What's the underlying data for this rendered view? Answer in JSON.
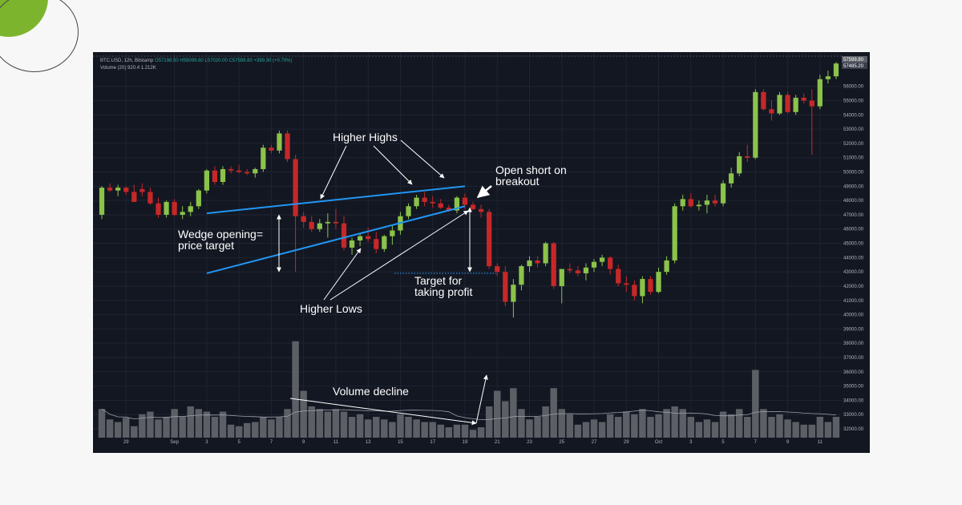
{
  "header": {
    "symbol": "BTC.USD, 12h, Bitstamp",
    "ohlc": "O57198.50  H59099.60  L57020.00  C57599.80  +399.30 (+0.70%)",
    "volume": "Volume (20)  920.4  1.212K"
  },
  "annotations": {
    "higher_highs": "Higher Highs",
    "higher_lows": "Higher Lows",
    "wedge_1": "Wedge opening=",
    "wedge_2": "price target",
    "short_1": "Open short on",
    "short_2": "breakout",
    "target_1": "Target for",
    "target_2": "taking profit",
    "volume_decline": "Volume decline"
  },
  "colors": {
    "up": "#8bc34a",
    "down": "#c62828",
    "trendline": "#2196f3",
    "volume_bar": "#5d5f66",
    "grid": "#1f2433"
  },
  "last_price_labels": [
    "57599.80",
    "57485.20"
  ],
  "chart_data": {
    "type": "candlestick",
    "ylim": [
      32000,
      57500
    ],
    "y_ticks": [
      32000,
      33000,
      34000,
      35000,
      36000,
      37000,
      38000,
      39000,
      40000,
      41000,
      42000,
      43000,
      44000,
      45000,
      46000,
      47000,
      48000,
      49000,
      50000,
      51000,
      52000,
      53000,
      54000,
      55000,
      56000
    ],
    "x_ticks": [
      {
        "label": "29",
        "i": 3
      },
      {
        "label": "Sep",
        "i": 9
      },
      {
        "label": "3",
        "i": 13
      },
      {
        "label": "5",
        "i": 17
      },
      {
        "label": "7",
        "i": 21
      },
      {
        "label": "9",
        "i": 25
      },
      {
        "label": "11",
        "i": 29
      },
      {
        "label": "13",
        "i": 33
      },
      {
        "label": "15",
        "i": 37
      },
      {
        "label": "17",
        "i": 41
      },
      {
        "label": "19",
        "i": 45
      },
      {
        "label": "21",
        "i": 49
      },
      {
        "label": "23",
        "i": 53
      },
      {
        "label": "25",
        "i": 57
      },
      {
        "label": "27",
        "i": 61
      },
      {
        "label": "29",
        "i": 65
      },
      {
        "label": "Oct",
        "i": 69
      },
      {
        "label": "3",
        "i": 73
      },
      {
        "label": "5",
        "i": 77
      },
      {
        "label": "7",
        "i": 81
      },
      {
        "label": "9",
        "i": 85
      },
      {
        "label": "11",
        "i": 89
      }
    ],
    "candles": [
      [
        47000,
        49000,
        46700,
        48900,
        55
      ],
      [
        48900,
        49200,
        48600,
        48700,
        35
      ],
      [
        48700,
        49100,
        48300,
        48900,
        30
      ],
      [
        48900,
        49000,
        48400,
        48600,
        38
      ],
      [
        48600,
        49100,
        47900,
        47900,
        22
      ],
      [
        48800,
        49200,
        48300,
        48600,
        45
      ],
      [
        48600,
        48900,
        47700,
        47800,
        50
      ],
      [
        47800,
        48200,
        46800,
        47000,
        35
      ],
      [
        47000,
        48000,
        46800,
        47900,
        40
      ],
      [
        47900,
        48100,
        46900,
        47000,
        55
      ],
      [
        47000,
        47600,
        46700,
        47200,
        40
      ],
      [
        47200,
        47900,
        46900,
        47600,
        60
      ],
      [
        47600,
        48800,
        47400,
        48700,
        55
      ],
      [
        48700,
        50200,
        48500,
        50100,
        50
      ],
      [
        50100,
        50400,
        49100,
        49300,
        40
      ],
      [
        49300,
        50400,
        49100,
        50200,
        50
      ],
      [
        50200,
        50400,
        49900,
        50100,
        25
      ],
      [
        50100,
        50500,
        49900,
        50000,
        22
      ],
      [
        50000,
        50200,
        49800,
        49900,
        28
      ],
      [
        49900,
        50300,
        49600,
        50200,
        30
      ],
      [
        50200,
        51900,
        50000,
        51700,
        40
      ],
      [
        51700,
        51900,
        51300,
        51500,
        35
      ],
      [
        51500,
        52900,
        51300,
        52700,
        40
      ],
      [
        52700,
        52900,
        50700,
        50900,
        55
      ],
      [
        50900,
        51200,
        43000,
        46900,
        185
      ],
      [
        46900,
        47200,
        46100,
        46500,
        90
      ],
      [
        46500,
        46900,
        45800,
        46000,
        60
      ],
      [
        46000,
        46700,
        45800,
        46400,
        55
      ],
      [
        46400,
        47100,
        45400,
        46500,
        50
      ],
      [
        46500,
        47400,
        46000,
        46400,
        55
      ],
      [
        46400,
        46900,
        44500,
        44700,
        50
      ],
      [
        44700,
        45400,
        44200,
        45200,
        40
      ],
      [
        45200,
        45700,
        44800,
        45500,
        45
      ],
      [
        45500,
        46100,
        45100,
        45300,
        35
      ],
      [
        45300,
        45800,
        44300,
        44600,
        40
      ],
      [
        44600,
        45600,
        44400,
        45500,
        35
      ],
      [
        45500,
        46300,
        44900,
        45900,
        30
      ],
      [
        45900,
        47200,
        45600,
        46900,
        45
      ],
      [
        46900,
        47800,
        46700,
        47600,
        40
      ],
      [
        47600,
        48400,
        47400,
        48200,
        35
      ],
      [
        48200,
        48600,
        47600,
        47900,
        30
      ],
      [
        47900,
        48300,
        47500,
        47800,
        30
      ],
      [
        47800,
        48100,
        47400,
        47500,
        25
      ],
      [
        47500,
        47700,
        47200,
        47300,
        20
      ],
      [
        47300,
        48300,
        47100,
        48200,
        25
      ],
      [
        48200,
        48500,
        47400,
        47700,
        25
      ],
      [
        47700,
        47900,
        47300,
        47400,
        15
      ],
      [
        47400,
        47700,
        46800,
        47200,
        20
      ],
      [
        47200,
        47400,
        43200,
        43400,
        60
      ],
      [
        43400,
        43600,
        42700,
        43000,
        90
      ],
      [
        43000,
        43400,
        40600,
        40900,
        70
      ],
      [
        40900,
        42500,
        39800,
        42100,
        95
      ],
      [
        42100,
        43500,
        41700,
        43400,
        55
      ],
      [
        43400,
        44100,
        43000,
        43800,
        35
      ],
      [
        43800,
        44100,
        43300,
        43600,
        40
      ],
      [
        43600,
        45100,
        43400,
        45000,
        60
      ],
      [
        45000,
        45100,
        41800,
        42000,
        95
      ],
      [
        42000,
        43200,
        40800,
        43200,
        55
      ],
      [
        43200,
        43600,
        42900,
        43100,
        45
      ],
      [
        43100,
        43400,
        42700,
        42900,
        25
      ],
      [
        42900,
        43600,
        42400,
        43300,
        30
      ],
      [
        43300,
        43900,
        43000,
        43700,
        35
      ],
      [
        43700,
        44200,
        43400,
        44000,
        30
      ],
      [
        44000,
        44100,
        42800,
        43200,
        45
      ],
      [
        43200,
        43500,
        42000,
        42200,
        40
      ],
      [
        42200,
        42700,
        41600,
        42100,
        50
      ],
      [
        42100,
        42400,
        41000,
        41300,
        45
      ],
      [
        41300,
        42700,
        40800,
        42500,
        55
      ],
      [
        42500,
        42700,
        41400,
        41600,
        40
      ],
      [
        41600,
        43300,
        41500,
        43000,
        45
      ],
      [
        43000,
        44100,
        42800,
        43800,
        55
      ],
      [
        43800,
        47800,
        43600,
        47600,
        60
      ],
      [
        47600,
        48400,
        47300,
        48100,
        55
      ],
      [
        48100,
        48500,
        47500,
        47600,
        40
      ],
      [
        47600,
        48000,
        47300,
        47700,
        30
      ],
      [
        47700,
        48400,
        47100,
        48000,
        35
      ],
      [
        48000,
        48400,
        47600,
        47800,
        30
      ],
      [
        47800,
        49400,
        47600,
        49200,
        50
      ],
      [
        49200,
        50300,
        48900,
        49900,
        45
      ],
      [
        49900,
        51400,
        49700,
        51100,
        55
      ],
      [
        51100,
        51900,
        50700,
        51000,
        40
      ],
      [
        51000,
        55800,
        50900,
        55600,
        130
      ],
      [
        55600,
        55800,
        54300,
        54400,
        55
      ],
      [
        54400,
        55000,
        53600,
        54100,
        40
      ],
      [
        54100,
        55600,
        54000,
        55400,
        45
      ],
      [
        55400,
        55600,
        54100,
        54200,
        35
      ],
      [
        54200,
        55400,
        54000,
        55200,
        30
      ],
      [
        55200,
        55500,
        54800,
        55000,
        25
      ],
      [
        55000,
        55800,
        51200,
        54600,
        25
      ],
      [
        54600,
        56800,
        54400,
        56500,
        40
      ],
      [
        56500,
        57100,
        56200,
        56700,
        30
      ],
      [
        56700,
        57700,
        56500,
        57600,
        40
      ]
    ],
    "trendlines": {
      "upper": [
        [
          13,
          47100
        ],
        [
          45,
          49000
        ]
      ],
      "lower": [
        [
          13,
          42900
        ],
        [
          45,
          47600
        ]
      ]
    },
    "target_level": 42900
  }
}
